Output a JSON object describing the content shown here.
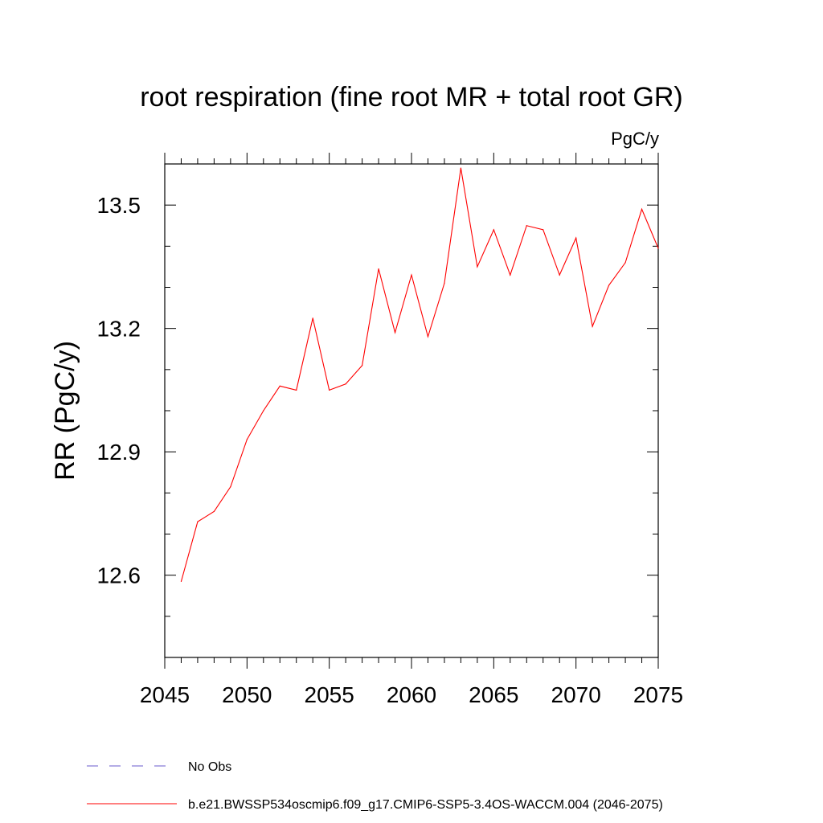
{
  "chart_data": {
    "type": "line",
    "title": "root respiration (fine root MR + total root GR)",
    "units": "PgC/y",
    "xlabel": "",
    "ylabel": "RR  (PgC/y)",
    "xlim": [
      2045,
      2075
    ],
    "ylim": [
      12.4,
      13.6
    ],
    "xticks": [
      2045,
      2050,
      2055,
      2060,
      2065,
      2070,
      2075
    ],
    "xtick_labels": [
      "2045",
      "2050",
      "2055",
      "2060",
      "2065",
      "2070",
      "2075"
    ],
    "yticks": [
      12.6,
      12.9,
      13.2,
      13.5
    ],
    "ytick_labels": [
      "12.6",
      "12.9",
      "13.2",
      "13.5"
    ],
    "series": [
      {
        "name": "b.e21.BWSSP534oscmip6.f09_g17.CMIP6-SSP5-3.4OS-WACCM.004 (2046-2075)",
        "color": "#ff0000",
        "x": [
          2046,
          2047,
          2048,
          2049,
          2050,
          2051,
          2052,
          2053,
          2054,
          2055,
          2056,
          2057,
          2058,
          2059,
          2060,
          2061,
          2062,
          2063,
          2064,
          2065,
          2066,
          2067,
          2068,
          2069,
          2070,
          2071,
          2072,
          2073,
          2074,
          2075
        ],
        "y": [
          12.585,
          12.73,
          12.755,
          12.815,
          12.93,
          13.0,
          13.06,
          13.05,
          13.225,
          13.05,
          13.065,
          13.11,
          13.345,
          13.19,
          13.33,
          13.18,
          13.31,
          13.59,
          13.35,
          13.44,
          13.33,
          13.45,
          13.44,
          13.33,
          13.42,
          13.205,
          13.305,
          13.36,
          13.49,
          13.395
        ]
      }
    ],
    "legend": [
      {
        "label": "No Obs",
        "color": "#6a5acd",
        "style": "dashed"
      },
      {
        "label": "b.e21.BWSSP534oscmip6.f09_g17.CMIP6-SSP5-3.4OS-WACCM.004 (2046-2075)",
        "color": "#ff0000",
        "style": "solid"
      }
    ],
    "legend_placement": "bottom"
  }
}
